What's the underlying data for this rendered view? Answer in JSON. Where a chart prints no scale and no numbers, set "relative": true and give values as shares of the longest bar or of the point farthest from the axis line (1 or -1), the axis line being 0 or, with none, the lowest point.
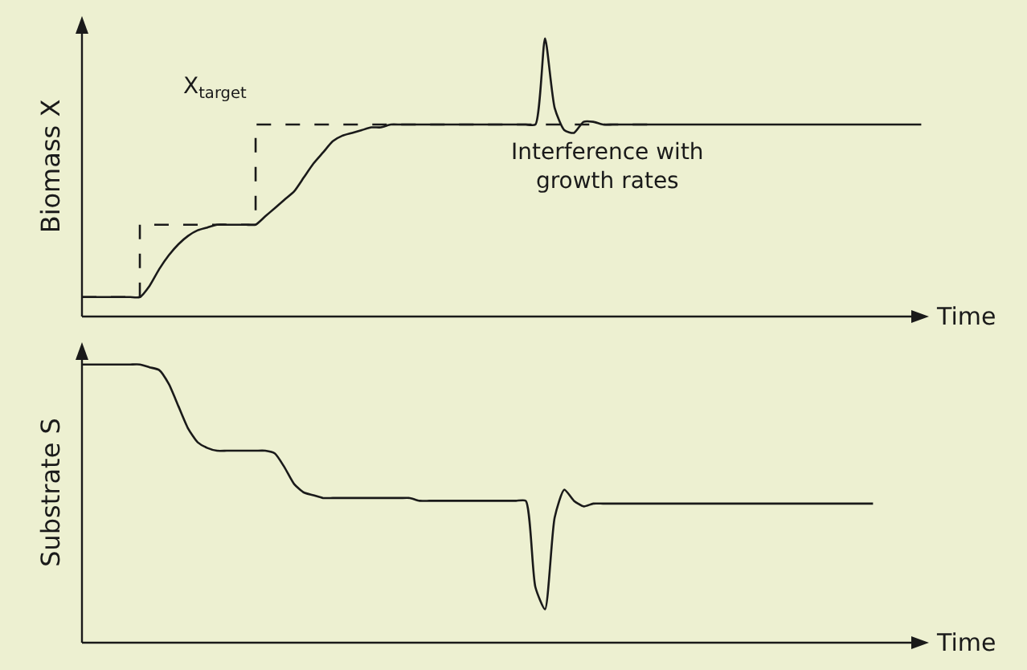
{
  "chart_data": [
    {
      "type": "line",
      "relative": true,
      "ylabel": "Biomass X",
      "xlabel": "Time",
      "annotations": [
        "X$_{target}$",
        "Interference with growth rates"
      ],
      "categories": [
        null,
        null,
        null,
        null,
        null,
        null,
        null,
        null,
        null,
        null,
        null,
        null,
        null,
        null,
        null,
        null,
        null,
        null,
        null,
        null,
        null,
        null,
        null,
        null,
        null,
        null,
        null,
        null,
        null,
        null,
        null,
        null,
        null,
        null,
        null,
        null,
        null,
        null,
        null,
        null,
        null,
        null,
        null,
        null,
        null,
        null,
        null,
        null,
        null,
        null,
        null,
        null,
        null,
        null,
        null,
        null,
        null,
        null,
        null,
        null,
        null,
        null,
        null,
        null,
        null,
        null,
        null,
        null,
        null,
        null,
        null,
        null,
        null,
        null,
        null,
        null,
        null,
        null,
        null,
        null,
        null,
        null,
        null,
        null,
        null,
        null,
        null,
        null
      ],
      "series": [
        {
          "color": "#1a1a1a",
          "line_style": "solid",
          "values": [
            0.07,
            0.07,
            0.07,
            0.07,
            0.07,
            0.07,
            0.07,
            0.11,
            0.17,
            0.22,
            0.26,
            0.29,
            0.31,
            0.32,
            0.33,
            0.33,
            0.33,
            0.33,
            0.33,
            0.36,
            0.39,
            0.42,
            0.45,
            0.5,
            0.55,
            0.59,
            0.63,
            0.65,
            0.66,
            0.67,
            0.68,
            0.68,
            0.69,
            0.69,
            0.69,
            0.69,
            0.69,
            0.69,
            0.69,
            0.69,
            0.69,
            0.69,
            0.69,
            0.69,
            0.69,
            0.69,
            0.69,
            0.69,
            1.0,
            0.75,
            0.67,
            0.66,
            0.7,
            0.7,
            0.69,
            0.69,
            0.69,
            0.69,
            0.69,
            0.69,
            0.69,
            0.69,
            0.69,
            0.69,
            0.69,
            0.69,
            0.69,
            0.69,
            0.69,
            0.69,
            0.69,
            0.69,
            0.69,
            0.69,
            0.69,
            0.69,
            0.69,
            0.69,
            0.69,
            0.69,
            0.69,
            0.69,
            0.69,
            0.69,
            0.69,
            0.69,
            0.69,
            0.69
          ]
        },
        {
          "type": "step",
          "color": "#1a1a1a",
          "line_style": "dashed",
          "values": [
            0.07,
            0.07,
            0.07,
            0.07,
            0.07,
            0.07,
            0.33,
            0.33,
            0.33,
            0.33,
            0.33,
            0.33,
            0.33,
            0.33,
            0.33,
            0.33,
            0.33,
            0.33,
            0.69,
            0.69,
            0.69,
            0.69,
            0.69,
            0.69,
            0.69,
            0.69,
            0.69,
            0.69,
            0.69,
            0.69,
            0.69,
            0.69,
            0.69,
            0.69,
            0.69,
            0.69,
            0.69,
            0.69,
            0.69,
            0.69,
            0.69,
            0.69,
            0.69,
            0.69,
            0.69,
            0.69,
            0.69,
            0.69,
            0.69,
            0.69,
            0.69,
            0.69,
            0.69,
            0.69,
            0.69,
            0.69,
            0.69,
            0.69,
            0.69,
            0.69,
            0.69,
            null,
            null,
            null,
            null,
            null,
            null,
            null,
            null,
            null,
            null,
            null,
            null,
            null,
            null,
            null,
            null,
            null,
            null,
            null,
            null,
            null,
            null,
            null,
            null,
            null,
            null,
            null
          ]
        }
      ]
    },
    {
      "type": "line",
      "relative": true,
      "ylabel": "Substrate S",
      "xlabel": "Time",
      "categories": [
        null,
        null,
        null,
        null,
        null,
        null,
        null,
        null,
        null,
        null,
        null,
        null,
        null,
        null,
        null,
        null,
        null,
        null,
        null,
        null,
        null,
        null,
        null,
        null,
        null,
        null,
        null,
        null,
        null,
        null,
        null,
        null,
        null,
        null,
        null,
        null,
        null,
        null,
        null,
        null,
        null,
        null,
        null,
        null,
        null,
        null,
        null,
        null,
        null,
        null,
        null,
        null,
        null,
        null,
        null,
        null,
        null,
        null,
        null,
        null,
        null,
        null,
        null,
        null,
        null,
        null,
        null,
        null,
        null,
        null,
        null,
        null,
        null,
        null,
        null,
        null,
        null,
        null,
        null,
        null,
        null,
        null,
        null,
        null,
        null,
        null,
        null,
        null
      ],
      "series": [
        {
          "color": "#1a1a1a",
          "line_style": "solid",
          "values": [
            1,
            1,
            1,
            1,
            1,
            1,
            1,
            0.99,
            0.98,
            0.93,
            0.85,
            0.77,
            0.72,
            0.7,
            0.69,
            0.69,
            0.69,
            0.69,
            0.69,
            0.69,
            0.68,
            0.63,
            0.57,
            0.54,
            0.53,
            0.52,
            0.52,
            0.52,
            0.52,
            0.52,
            0.52,
            0.52,
            0.52,
            0.52,
            0.52,
            0.51,
            0.51,
            0.51,
            0.51,
            0.51,
            0.51,
            0.51,
            0.51,
            0.51,
            0.51,
            0.51,
            0.51,
            0.2,
            0.12,
            0.45,
            0.55,
            0.51,
            0.49,
            0.5,
            0.5,
            0.5,
            0.5,
            0.5,
            0.5,
            0.5,
            0.5,
            0.5,
            0.5,
            0.5,
            0.5,
            0.5,
            0.5,
            0.5,
            0.5,
            0.5,
            0.5,
            0.5,
            0.5,
            0.5,
            0.5,
            0.5,
            0.5,
            0.5,
            0.5,
            0.5,
            0.5,
            0.5,
            0.5,
            null,
            null,
            null,
            null,
            null
          ]
        }
      ]
    }
  ]
}
